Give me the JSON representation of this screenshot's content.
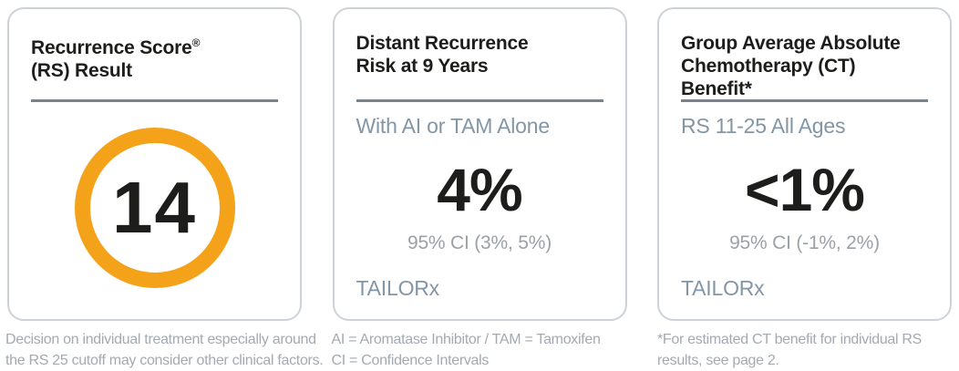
{
  "colors": {
    "accent_orange": "#f5a21b",
    "title_text": "#1d1d1b",
    "divider": "#76828c",
    "subtitle_text": "#8396a6",
    "ci_text": "#9aa1a9",
    "footnote_text": "#a3aab1",
    "card_border": "#cdd2d6",
    "background": "#ffffff"
  },
  "cards": [
    {
      "id": "recurrence-score-result",
      "title_line1": "Recurrence Score",
      "title_reg_mark": "®",
      "title_line2": "(RS) Result",
      "score_value": "14",
      "footnote_lines": [
        "Decision on individual treatment especially around",
        "the RS 25 cutoff may consider other clinical factors."
      ]
    },
    {
      "id": "distant-recurrence-risk",
      "title_line1": "Distant Recurrence",
      "title_line2": "Risk at 9 Years",
      "subtitle": "With AI or TAM Alone",
      "value": "4%",
      "ci": "95% CI (3%, 5%)",
      "source": "TAILORx",
      "footnote_lines": [
        "AI = Aromatase Inhibitor / TAM = Tamoxifen",
        "CI = Confidence Intervals"
      ]
    },
    {
      "id": "chemotherapy-benefit",
      "title_line1": "Group Average Absolute",
      "title_line2": "Chemotherapy (CT)",
      "title_line3": "Benefit*",
      "subtitle": "RS 11-25 All Ages",
      "value": "<1%",
      "ci": "95% CI (-1%, 2%)",
      "source": "TAILORx",
      "footnote_lines": [
        "*For estimated CT benefit for individual RS",
        "results, see page 2."
      ]
    }
  ]
}
